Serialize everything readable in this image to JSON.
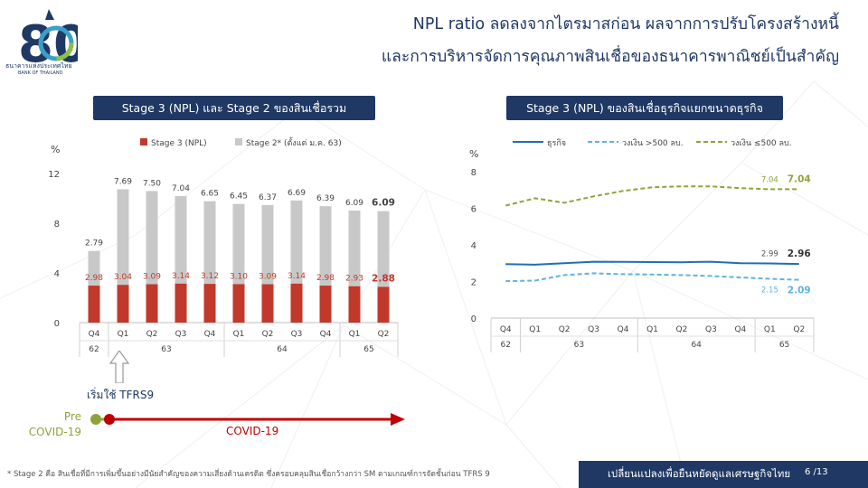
{
  "header": {
    "title_line1": "NPL ratio ลดลงจากไตรมาสก่อน ผลจากการปรับโครงสร้างหนี้",
    "title_line2": "และการบริหารจัดการคุณภาพสินเชื่อของธนาคารพาณิชย์เป็นสำคัญ"
  },
  "logo": {
    "name_th": "ธนาคารแห่งประเทศไทย",
    "name_en": "BANK OF THAILAND",
    "number": "80"
  },
  "left_panel_title": "Stage 3 (NPL) และ Stage 2 ของสินเชื่อรวม",
  "right_panel_title": "Stage 3 (NPL) ของสินเชื่อธุรกิจแยกขนาดธุรกิจ",
  "annotation": {
    "tfrs9": "เริ่มใช้ TFRS9",
    "pre_covid": [
      "Pre",
      "COVID-19"
    ],
    "covid": "COVID-19"
  },
  "footnote": "* Stage 2 คือ สินเชื่อที่มีการเพิ่มขึ้นอย่างมีนัยสำคัญของความเสี่ยงด้านเครดิต  ซึ่งครอบคลุมสินเชื่อกว้างกว่า  SM ตามเกณฑ์การจัดชั้นก่อน  TFRS 9",
  "footer": {
    "slogan": "เปลี่ยนแปลงเพื่อยืนหยัดดูแลเศรษฐกิจไทย",
    "page": "6 /13"
  },
  "colors": {
    "navy": "#1f3864",
    "stage3": "#c0392b",
    "stage2": "#c8c8c8",
    "line_total": "#1f6fb4",
    "line_large": "#5fb3dd",
    "line_sme": "#8ea43a",
    "pre_covid": "#8ea43a",
    "covid": "#c00000"
  },
  "chart_data": [
    {
      "type": "bar",
      "title": "Stage 3 (NPL) และ Stage 2 ของสินเชื่อรวม",
      "ylabel": "%",
      "ylim": [
        0,
        12
      ],
      "yticks": [
        0,
        4,
        8,
        12
      ],
      "categories": [
        "Q4",
        "Q1",
        "Q2",
        "Q3",
        "Q4",
        "Q1",
        "Q2",
        "Q3",
        "Q4",
        "Q1",
        "Q2"
      ],
      "year_groups": [
        {
          "label": "62",
          "count": 1
        },
        {
          "label": "63",
          "count": 4
        },
        {
          "label": "64",
          "count": 4
        },
        {
          "label": "65",
          "count": 2
        }
      ],
      "series": [
        {
          "name": "Stage 3 (NPL)",
          "values": [
            2.98,
            3.04,
            3.09,
            3.14,
            3.12,
            3.1,
            3.09,
            3.14,
            2.98,
            2.93,
            2.88
          ],
          "labels": [
            "2.98",
            "3.04",
            "3.09",
            "3.14",
            "3.12",
            "3.10",
            "3.09",
            "3.14",
            "2.98",
            "2.93",
            "2.88"
          ]
        },
        {
          "name": "Stage 2* (ตั้งแต่ ม.ค. 63)",
          "values": [
            2.79,
            7.69,
            7.5,
            7.04,
            6.65,
            6.45,
            6.37,
            6.69,
            6.39,
            6.09,
            6.09
          ],
          "labels": [
            "2.79",
            "7.69",
            "7.50",
            "7.04",
            "6.65",
            "6.45",
            "6.37",
            "6.69",
            "6.39",
            "6.09",
            "6.09"
          ]
        }
      ]
    },
    {
      "type": "line",
      "title": "Stage 3 (NPL) ของสินเชื่อธุรกิจแยกขนาดธุรกิจ",
      "ylabel": "%",
      "ylim": [
        0,
        8
      ],
      "yticks": [
        0,
        2,
        4,
        6,
        8
      ],
      "categories": [
        "Q4",
        "Q1",
        "Q2",
        "Q3",
        "Q4",
        "Q1",
        "Q2",
        "Q3",
        "Q4",
        "Q1",
        "Q2"
      ],
      "year_groups": [
        {
          "label": "62",
          "count": 1
        },
        {
          "label": "63",
          "count": 4
        },
        {
          "label": "64",
          "count": 4
        },
        {
          "label": "65",
          "count": 2
        }
      ],
      "series": [
        {
          "name": "ธุรกิจ",
          "values": [
            2.95,
            2.92,
            3.0,
            3.08,
            3.07,
            3.06,
            3.05,
            3.08,
            3.0,
            2.99,
            2.96
          ],
          "labels": {
            "9": "2.99",
            "10": "2.96"
          }
        },
        {
          "name": "วงเงิน >500 ลบ.",
          "values": [
            2.02,
            2.05,
            2.35,
            2.45,
            2.4,
            2.38,
            2.35,
            2.3,
            2.22,
            2.15,
            2.09
          ],
          "labels": {
            "9": "2.15",
            "10": "2.09"
          }
        },
        {
          "name": "วงเงิน ≤500 ลบ.",
          "values": [
            6.15,
            6.55,
            6.3,
            6.65,
            6.95,
            7.15,
            7.2,
            7.2,
            7.1,
            7.04,
            7.04
          ],
          "labels": {
            "9": "7.04",
            "10": "7.04"
          }
        }
      ]
    }
  ]
}
